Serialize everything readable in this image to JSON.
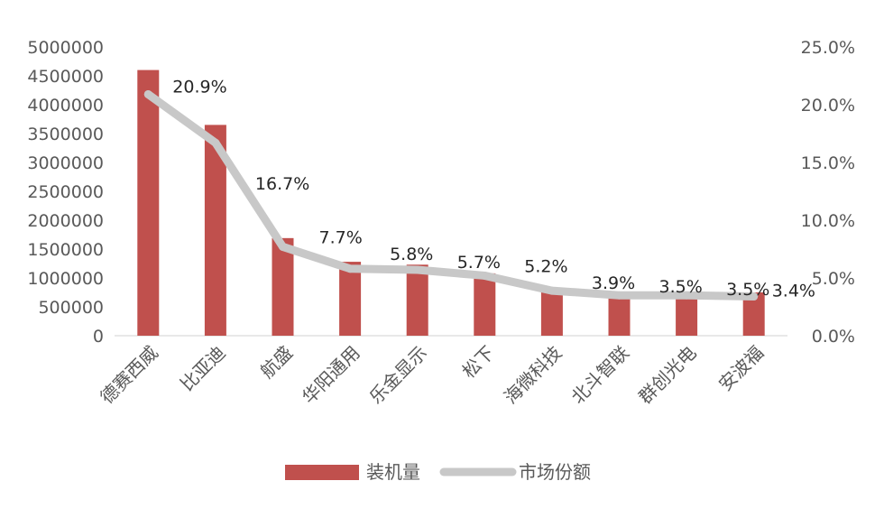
{
  "chart_data": {
    "type": "bar",
    "categories": [
      "德赛西威",
      "比亚迪",
      "航盛",
      "华阳通用",
      "乐金显示",
      "松下",
      "海微科技",
      "北斗智联",
      "群创光电",
      "安波福"
    ],
    "series": [
      {
        "name": "装机量",
        "type": "bar",
        "axis": "left",
        "color": "#c0504d",
        "values": [
          4600000,
          3650000,
          1690000,
          1280000,
          1230000,
          1080000,
          760000,
          700000,
          720000,
          750000
        ]
      },
      {
        "name": "市场份额",
        "type": "line",
        "axis": "right",
        "color": "#c8c8c8",
        "values": [
          0.209,
          0.167,
          0.077,
          0.058,
          0.057,
          0.052,
          0.039,
          0.035,
          0.035,
          0.034
        ],
        "labels": [
          "20.9%",
          "16.7%",
          "7.7%",
          "5.8%",
          "5.7%",
          "5.2%",
          "3.9%",
          "3.5%",
          "3.5%",
          "3.4%"
        ]
      }
    ],
    "y_left": {
      "min": 0,
      "max": 5000000,
      "ticks": [
        "0",
        "500000",
        "1000000",
        "1500000",
        "2000000",
        "2500000",
        "3000000",
        "3500000",
        "4000000",
        "4500000",
        "5000000"
      ]
    },
    "y_right": {
      "min": 0,
      "max": 0.25,
      "ticks": [
        "0.0%",
        "5.0%",
        "10.0%",
        "15.0%",
        "20.0%",
        "25.0%"
      ]
    },
    "grid": false,
    "legend": "bottom"
  }
}
